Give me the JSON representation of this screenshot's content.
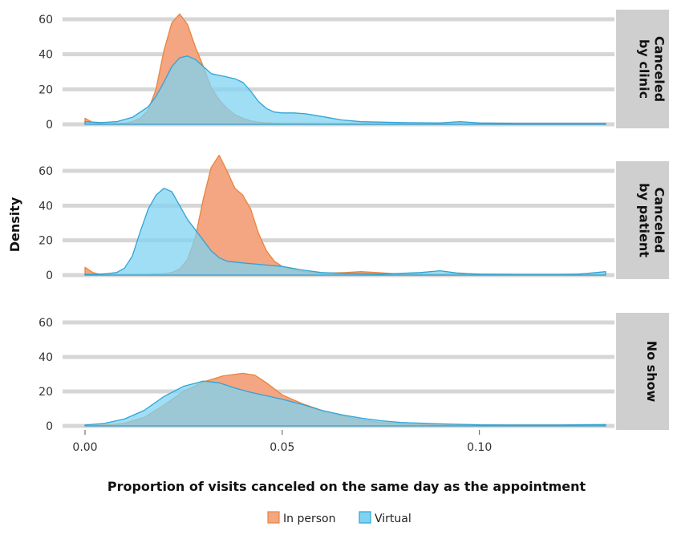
{
  "chart_data": {
    "type": "area",
    "xlabel": "Proportion of visits canceled on the same day as the appointment",
    "ylabel": "Density",
    "xlim": [
      0,
      0.132
    ],
    "ylim": [
      0,
      65
    ],
    "x_ticks": [
      {
        "value": 0,
        "label": "0.00"
      },
      {
        "value": 0.05,
        "label": "0.05"
      },
      {
        "value": 0.1,
        "label": "0.10"
      }
    ],
    "y_ticks": [
      {
        "value": 0,
        "label": "0"
      },
      {
        "value": 20,
        "label": "20"
      },
      {
        "value": 40,
        "label": "40"
      },
      {
        "value": 60,
        "label": "60"
      }
    ],
    "legend": {
      "placement": "bottom",
      "entries": [
        {
          "name": "In person",
          "color": "#f4a582"
        },
        {
          "name": "Virtual",
          "color": "#7fd3f0"
        }
      ]
    },
    "colors": {
      "in_person_fill": "#f4a582",
      "in_person_line": "#e8853d",
      "virtual_fill": "#7fd3f0",
      "virtual_line": "#2fa4d6",
      "strip_bg": "#cfcfcf",
      "grid": "#d6d6d6"
    },
    "panels": [
      {
        "strip": [
          "Canceled",
          "by clinic"
        ],
        "series": [
          {
            "name": "In person",
            "x": [
              0,
              0.002,
              0.004,
              0.006,
              0.008,
              0.01,
              0.012,
              0.014,
              0.016,
              0.018,
              0.02,
              0.022,
              0.024,
              0.026,
              0.028,
              0.03,
              0.032,
              0.034,
              0.036,
              0.038,
              0.04,
              0.042,
              0.044,
              0.046,
              0.048,
              0.05,
              0.055,
              0.06,
              0.07,
              0.08,
              0.09,
              0.1,
              0.11,
              0.12,
              0.132
            ],
            "y": [
              3.5,
              1.0,
              0.3,
              0.2,
              0.3,
              0.6,
              1.5,
              3.5,
              8,
              20,
              42,
              58,
              63,
              57,
              44,
              33,
              21,
              14,
              9,
              5.5,
              3.5,
              2,
              1.2,
              0.8,
              0.6,
              0.4,
              0.3,
              0.2,
              0.2,
              0.1,
              0.1,
              0.1,
              0.1,
              0.1,
              0.1
            ]
          },
          {
            "name": "Virtual",
            "x": [
              0,
              0.004,
              0.008,
              0.012,
              0.016,
              0.018,
              0.02,
              0.022,
              0.024,
              0.026,
              0.028,
              0.03,
              0.032,
              0.034,
              0.036,
              0.038,
              0.04,
              0.042,
              0.044,
              0.046,
              0.048,
              0.05,
              0.053,
              0.056,
              0.06,
              0.065,
              0.07,
              0.08,
              0.09,
              0.095,
              0.1,
              0.11,
              0.12,
              0.132
            ],
            "y": [
              1.5,
              1.0,
              1.5,
              4,
              10,
              16,
              24,
              33,
              38,
              39,
              37,
              33,
              29,
              28,
              27,
              26,
              24,
              19,
              13,
              9,
              7,
              6.5,
              6.5,
              6,
              4.5,
              2.5,
              1.5,
              1.0,
              0.8,
              1.5,
              0.8,
              0.5,
              0.5,
              0.5
            ]
          }
        ]
      },
      {
        "strip": [
          "Canceled",
          "by patient"
        ],
        "series": [
          {
            "name": "In person",
            "x": [
              0,
              0.002,
              0.004,
              0.008,
              0.012,
              0.016,
              0.02,
              0.022,
              0.024,
              0.026,
              0.028,
              0.03,
              0.032,
              0.034,
              0.036,
              0.038,
              0.04,
              0.042,
              0.044,
              0.046,
              0.048,
              0.05,
              0.054,
              0.058,
              0.062,
              0.066,
              0.07,
              0.074,
              0.08,
              0.09,
              0.095,
              0.1,
              0.11,
              0.12,
              0.132
            ],
            "y": [
              4.5,
              1.5,
              0.3,
              0.2,
              0.2,
              0.3,
              0.8,
              1.5,
              3.5,
              9,
              22,
              44,
              62,
              69,
              60,
              50,
              46,
              38,
              24,
              14,
              8,
              5,
              2.5,
              1.5,
              1.2,
              1.5,
              2.0,
              1.5,
              0.6,
              0.5,
              1.2,
              0.4,
              0.3,
              0.3,
              0.3
            ]
          },
          {
            "name": "Virtual",
            "x": [
              0,
              0.004,
              0.008,
              0.01,
              0.012,
              0.014,
              0.016,
              0.018,
              0.02,
              0.022,
              0.024,
              0.026,
              0.028,
              0.03,
              0.032,
              0.034,
              0.036,
              0.04,
              0.045,
              0.05,
              0.055,
              0.06,
              0.065,
              0.07,
              0.075,
              0.08,
              0.085,
              0.09,
              0.095,
              0.1,
              0.11,
              0.12,
              0.125,
              0.132
            ],
            "y": [
              0.5,
              0.5,
              1.5,
              4,
              11,
              25,
              38,
              46,
              50,
              48,
              40,
              32,
              26,
              20,
              14,
              10,
              8,
              7,
              6,
              5,
              3,
              1.5,
              1.0,
              0.8,
              0.6,
              1.0,
              1.5,
              2.5,
              1.0,
              0.5,
              0.3,
              0.3,
              0.5,
              2.0
            ]
          }
        ]
      },
      {
        "strip": [
          "No show"
        ],
        "series": [
          {
            "name": "In person",
            "x": [
              0,
              0.005,
              0.01,
              0.015,
              0.02,
              0.025,
              0.03,
              0.035,
              0.04,
              0.043,
              0.046,
              0.05,
              0.055,
              0.06,
              0.065,
              0.07,
              0.075,
              0.08,
              0.085,
              0.09,
              0.1,
              0.11,
              0.12,
              0.132
            ],
            "y": [
              0.2,
              0.5,
              1.5,
              5,
              12,
              20,
              25.5,
              29,
              30.5,
              29.5,
              25,
              18,
              13,
              9,
              6,
              3.5,
              2,
              1.2,
              0.8,
              0.6,
              0.4,
              0.3,
              0.3,
              0.3
            ]
          },
          {
            "name": "Virtual",
            "x": [
              0,
              0.005,
              0.01,
              0.015,
              0.02,
              0.025,
              0.03,
              0.034,
              0.038,
              0.042,
              0.046,
              0.05,
              0.055,
              0.06,
              0.065,
              0.07,
              0.075,
              0.08,
              0.09,
              0.1,
              0.11,
              0.12,
              0.132
            ],
            "y": [
              0.5,
              1.5,
              4,
              9,
              17,
              23,
              26,
              25,
              22,
              19.5,
              17.5,
              15.5,
              12.5,
              9,
              6.5,
              4.5,
              3,
              2,
              1.2,
              0.6,
              0.5,
              0.5,
              0.8
            ]
          }
        ]
      }
    ]
  }
}
